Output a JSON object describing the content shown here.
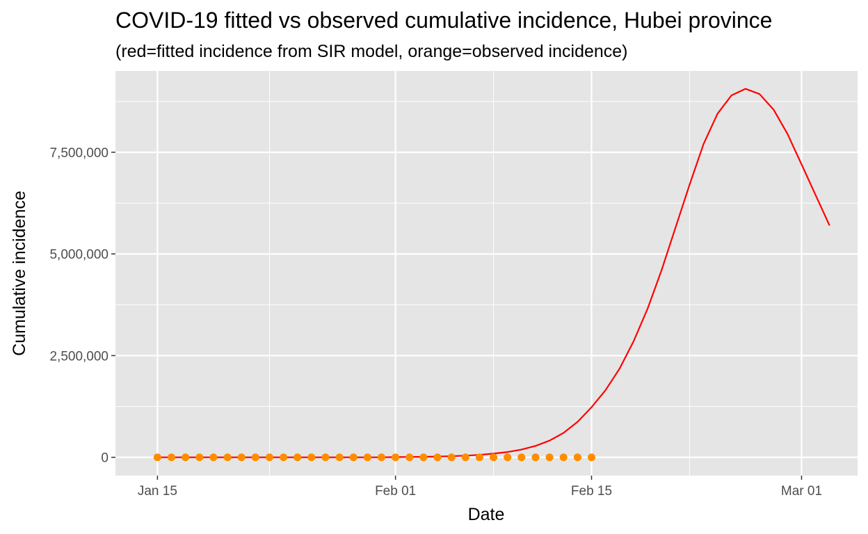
{
  "chart_data": {
    "type": "line",
    "title": "COVID-19 fitted vs observed cumulative incidence, Hubei province",
    "subtitle": "(red=fitted incidence from SIR model, orange=observed incidence)",
    "xlabel": "Date",
    "ylabel": "Cumulative incidence",
    "xlim": [
      "2020-01-12",
      "2020-03-05"
    ],
    "ylim": [
      -450000,
      9500000
    ],
    "x_ticks": [
      {
        "date": "2020-01-15",
        "label": "Jan 15"
      },
      {
        "date": "2020-02-01",
        "label": "Feb 01"
      },
      {
        "date": "2020-02-15",
        "label": "Feb 15"
      },
      {
        "date": "2020-03-01",
        "label": "Mar 01"
      }
    ],
    "x_minor_ticks": [
      "2020-01-23",
      "2020-02-08",
      "2020-02-22"
    ],
    "y_ticks": [
      {
        "value": 0,
        "label": "0"
      },
      {
        "value": 2500000,
        "label": "2,500,000"
      },
      {
        "value": 5000000,
        "label": "5,000,000"
      },
      {
        "value": 7500000,
        "label": "7,500,000"
      }
    ],
    "y_minor_ticks": [
      1250000,
      3750000,
      6250000,
      8750000
    ],
    "grid": true,
    "colors": {
      "fitted": "#ff0000",
      "observed": "#ff8c00",
      "panel": "#e5e5e5",
      "grid": "#ffffff"
    },
    "series": [
      {
        "kind": "line",
        "color": "#ff0000",
        "x": [
          "2020-01-15",
          "2020-01-16",
          "2020-01-17",
          "2020-01-18",
          "2020-01-19",
          "2020-01-20",
          "2020-01-21",
          "2020-01-22",
          "2020-01-23",
          "2020-01-24",
          "2020-01-25",
          "2020-01-26",
          "2020-01-27",
          "2020-01-28",
          "2020-01-29",
          "2020-01-30",
          "2020-01-31",
          "2020-02-01",
          "2020-02-02",
          "2020-02-03",
          "2020-02-04",
          "2020-02-05",
          "2020-02-06",
          "2020-02-07",
          "2020-02-08",
          "2020-02-09",
          "2020-02-10",
          "2020-02-11",
          "2020-02-12",
          "2020-02-13",
          "2020-02-14",
          "2020-02-15",
          "2020-02-16",
          "2020-02-17",
          "2020-02-18",
          "2020-02-19",
          "2020-02-20",
          "2020-02-21",
          "2020-02-22",
          "2020-02-23",
          "2020-02-24",
          "2020-02-25",
          "2020-02-26",
          "2020-02-27",
          "2020-02-28",
          "2020-02-29",
          "2020-03-01",
          "2020-03-02",
          "2020-03-03"
        ],
        "y": [
          0,
          0,
          0,
          0,
          0,
          0,
          0,
          0,
          0,
          0,
          0,
          0,
          0,
          0,
          0,
          0,
          0,
          5000,
          8000,
          12000,
          18000,
          27000,
          40000,
          60000,
          90000,
          130000,
          190000,
          280000,
          410000,
          600000,
          870000,
          1230000,
          1650000,
          2180000,
          2850000,
          3650000,
          4600000,
          5650000,
          6700000,
          7700000,
          8450000,
          8900000,
          9060000,
          8930000,
          8550000,
          7950000,
          7200000,
          6450000,
          5700000
        ]
      },
      {
        "kind": "points",
        "color": "#ff8c00",
        "x": [
          "2020-01-15",
          "2020-01-16",
          "2020-01-17",
          "2020-01-18",
          "2020-01-19",
          "2020-01-20",
          "2020-01-21",
          "2020-01-22",
          "2020-01-23",
          "2020-01-24",
          "2020-01-25",
          "2020-01-26",
          "2020-01-27",
          "2020-01-28",
          "2020-01-29",
          "2020-01-30",
          "2020-01-31",
          "2020-02-01",
          "2020-02-02",
          "2020-02-03",
          "2020-02-04",
          "2020-02-05",
          "2020-02-06",
          "2020-02-07",
          "2020-02-08",
          "2020-02-09",
          "2020-02-10",
          "2020-02-11",
          "2020-02-12",
          "2020-02-13",
          "2020-02-14",
          "2020-02-15"
        ],
        "y": [
          0,
          0,
          0,
          0,
          0,
          0,
          0,
          0,
          0,
          0,
          0,
          0,
          0,
          0,
          0,
          0,
          0,
          0,
          0,
          0,
          0,
          0,
          0,
          0,
          0,
          0,
          0,
          0,
          0,
          0,
          0,
          0
        ]
      }
    ]
  }
}
